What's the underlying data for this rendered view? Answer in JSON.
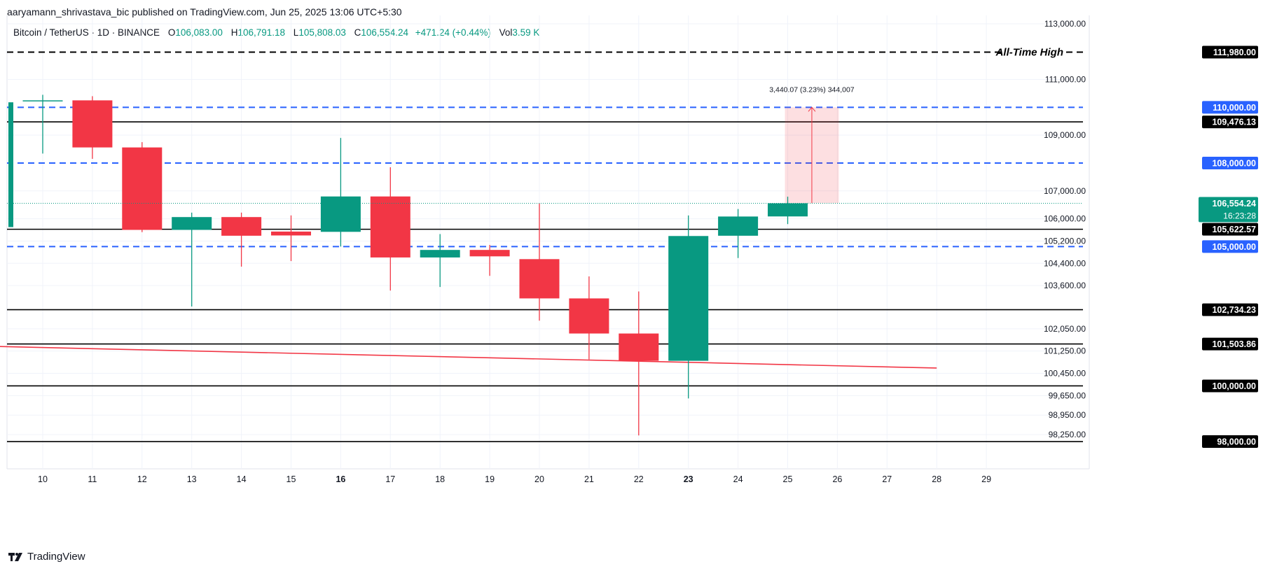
{
  "header": {
    "publisher_line": "aaryamann_shrivastava_bic published on TradingView.com, Jun 25, 2025 13:06 UTC+5:30"
  },
  "legend": {
    "symbol": "Bitcoin / TetherUS · 1D · BINANCE",
    "open_label": "O",
    "open_value": "106,083.00",
    "high_label": "H",
    "high_value": "106,791.18",
    "low_label": "L",
    "low_value": "105,808.03",
    "close_label": "C",
    "close_value": "106,554.24",
    "change_value": "+471.24 (+0.44%)",
    "vol_label": "Vol",
    "vol_value": "3.59 K"
  },
  "branding": {
    "logo": "tradingview-logo",
    "text": "TradingView"
  },
  "colors": {
    "up": "#089981",
    "down": "#f23645",
    "blue_level": "#2962ff",
    "trendline": "#f23645",
    "grid": "#f0f3fa"
  },
  "chart_data": {
    "type": "candlestick",
    "title": "Bitcoin / TetherUS · 1D · BINANCE",
    "ylim": [
      97700,
      113300
    ],
    "grid": true,
    "y_ticks": [
      "113,000.00",
      "111,000.00",
      "109,000.00",
      "107,000.00",
      "106,000.00",
      "105,200.00",
      "104,400.00",
      "103,600.00",
      "102,050.00",
      "101,250.00",
      "100,450.00",
      "99,650.00",
      "98,950.00",
      "98,250.00"
    ],
    "x_ticks": [
      {
        "label": "10",
        "day": 10,
        "bold": false
      },
      {
        "label": "11",
        "day": 11,
        "bold": false
      },
      {
        "label": "12",
        "day": 12,
        "bold": false
      },
      {
        "label": "13",
        "day": 13,
        "bold": false
      },
      {
        "label": "14",
        "day": 14,
        "bold": false
      },
      {
        "label": "15",
        "day": 15,
        "bold": false
      },
      {
        "label": "16",
        "day": 16,
        "bold": true
      },
      {
        "label": "17",
        "day": 17,
        "bold": false
      },
      {
        "label": "18",
        "day": 18,
        "bold": false
      },
      {
        "label": "19",
        "day": 19,
        "bold": false
      },
      {
        "label": "20",
        "day": 20,
        "bold": false
      },
      {
        "label": "21",
        "day": 21,
        "bold": false
      },
      {
        "label": "22",
        "day": 22,
        "bold": false
      },
      {
        "label": "23",
        "day": 23,
        "bold": true
      },
      {
        "label": "24",
        "day": 24,
        "bold": false
      },
      {
        "label": "25",
        "day": 25,
        "bold": false
      },
      {
        "label": "26",
        "day": 26,
        "bold": false
      },
      {
        "label": "27",
        "day": 27,
        "bold": false
      },
      {
        "label": "28",
        "day": 28,
        "bold": false
      },
      {
        "label": "29",
        "day": 29,
        "bold": false
      }
    ],
    "candles": [
      {
        "day": 9,
        "open": 105700,
        "high": 110350,
        "low": 105600,
        "close": 110180
      },
      {
        "day": 10,
        "open": 110250,
        "high": 110450,
        "low": 108340,
        "close": 110250
      },
      {
        "day": 11,
        "open": 110250,
        "high": 110400,
        "low": 108150,
        "close": 108560
      },
      {
        "day": 12,
        "open": 108560,
        "high": 108750,
        "low": 105520,
        "close": 105600
      },
      {
        "day": 13,
        "open": 105600,
        "high": 106220,
        "low": 102850,
        "close": 106060
      },
      {
        "day": 14,
        "open": 106060,
        "high": 106220,
        "low": 104280,
        "close": 105390
      },
      {
        "day": 15,
        "open": 105540,
        "high": 106120,
        "low": 104480,
        "close": 105400
      },
      {
        "day": 16,
        "open": 105530,
        "high": 108900,
        "low": 105000,
        "close": 106800
      },
      {
        "day": 17,
        "open": 106800,
        "high": 107850,
        "low": 103420,
        "close": 104610
      },
      {
        "day": 18,
        "open": 104610,
        "high": 105450,
        "low": 103550,
        "close": 104880
      },
      {
        "day": 19,
        "open": 104880,
        "high": 105060,
        "low": 103950,
        "close": 104650
      },
      {
        "day": 20,
        "open": 104550,
        "high": 106550,
        "low": 102340,
        "close": 103140
      },
      {
        "day": 21,
        "open": 103140,
        "high": 103930,
        "low": 100950,
        "close": 101880
      },
      {
        "day": 22,
        "open": 101880,
        "high": 103390,
        "low": 98220,
        "close": 100900
      },
      {
        "day": 23,
        "open": 100900,
        "high": 106120,
        "low": 99550,
        "close": 105380
      },
      {
        "day": 24,
        "open": 105390,
        "high": 106350,
        "low": 104590,
        "close": 106080
      },
      {
        "day": 25,
        "open": 106083,
        "high": 106791.18,
        "low": 105808.03,
        "close": 106554.24
      }
    ],
    "levels": [
      {
        "value": 111980,
        "label": "111,980.00",
        "style": "dashed",
        "color": "#000000",
        "annotation": "All-Time High"
      },
      {
        "value": 110000,
        "label": "110,000.00",
        "style": "dashed",
        "color": "#2962ff",
        "annotation": ""
      },
      {
        "value": 109476.13,
        "label": "109,476.13",
        "style": "solid",
        "color": "#000000",
        "annotation": ""
      },
      {
        "value": 108000,
        "label": "108,000.00",
        "style": "dashed",
        "color": "#2962ff",
        "annotation": ""
      },
      {
        "value": 105622.57,
        "label": "105,622.57",
        "style": "solid",
        "color": "#000000",
        "annotation": ""
      },
      {
        "value": 105000,
        "label": "105,000.00",
        "style": "dashed",
        "color": "#2962ff",
        "annotation": ""
      },
      {
        "value": 102734.23,
        "label": "102,734.23",
        "style": "solid",
        "color": "#000000",
        "annotation": ""
      },
      {
        "value": 101503.86,
        "label": "101,503.86",
        "style": "solid",
        "color": "#000000",
        "annotation": ""
      },
      {
        "value": 100000,
        "label": "100,000.00",
        "style": "solid",
        "color": "#000000",
        "annotation": ""
      },
      {
        "value": 98000,
        "label": "98,000.00",
        "style": "solid",
        "color": "#000000",
        "annotation": ""
      }
    ],
    "current_price": {
      "value": 106554.24,
      "label": "106,554.24",
      "countdown": "16:23:28"
    },
    "trendline": {
      "from_day": 9.3,
      "from_value": 101440,
      "to_day": 28,
      "to_value": 100640
    },
    "measure": {
      "from_day": 25,
      "to_day": 26,
      "from_value": 106560,
      "to_value": 110000,
      "text": "3,440.07 (3.23%) 344,007"
    }
  }
}
